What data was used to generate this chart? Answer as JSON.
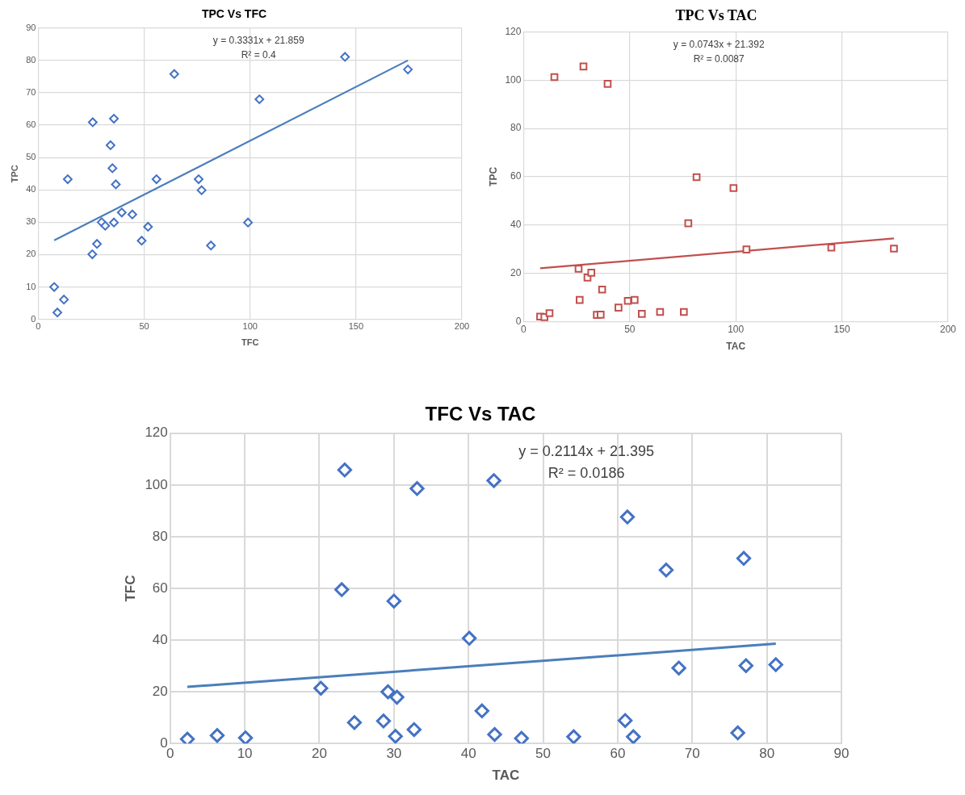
{
  "chart_data": [
    {
      "type": "scatter",
      "title": "TPC Vs TFC",
      "xlabel": "TFC",
      "ylabel": "TPC",
      "xlim": [
        0,
        200
      ],
      "ylim": [
        0,
        90
      ],
      "xticks": [
        0,
        50,
        100,
        150,
        200
      ],
      "yticks": [
        0,
        10,
        20,
        30,
        40,
        50,
        60,
        70,
        80,
        90
      ],
      "grid": true,
      "series": [
        {
          "marker": "diamond",
          "color": "#4472c4",
          "x": [
            7.5,
            12.1,
            9.0,
            13.9,
            25.7,
            25.5,
            27.7,
            29.9,
            31.6,
            34.1,
            35.0,
            35.7,
            35.7,
            36.6,
            39.4,
            44.4,
            48.8,
            51.8,
            55.8,
            64.2,
            75.7,
            77.1,
            81.5,
            99.0,
            104.4,
            144.8,
            174.5
          ],
          "values": [
            10,
            6.1,
            2.1,
            43.3,
            60.9,
            20.1,
            23.3,
            30,
            28.9,
            53.8,
            46.7,
            62.0,
            29.9,
            41.7,
            33.0,
            32.4,
            24.3,
            28.6,
            43.3,
            75.8,
            43.3,
            39.9,
            22.8,
            29.9,
            68.0,
            81.1,
            77.2
          ]
        },
        {
          "type": "line",
          "marker": "none",
          "color": "#4a7ebb",
          "x": [
            7.5,
            174.5
          ],
          "values": [
            24.4,
            80.0
          ]
        }
      ],
      "annotations": [
        "y = 0.3331x + 21.859",
        "R² = 0.4"
      ]
    },
    {
      "type": "scatter",
      "title": "TPC Vs TAC",
      "xlabel": "TAC",
      "ylabel": "TPC",
      "xlim": [
        0,
        200
      ],
      "ylim": [
        0,
        120
      ],
      "xticks": [
        0,
        50,
        100,
        150,
        200
      ],
      "yticks": [
        0,
        20,
        40,
        60,
        80,
        100,
        120
      ],
      "grid": true,
      "series": [
        {
          "marker": "square",
          "color": "#c0504d",
          "x": [
            7.8,
            9.8,
            12.2,
            14.5,
            25.9,
            26.4,
            28.2,
            30.1,
            31.9,
            34.5,
            36.3,
            37.0,
            39.6,
            44.7,
            49.1,
            52.3,
            55.7,
            64.3,
            75.5,
            77.6,
            81.5,
            98.9,
            105.0,
            145.0,
            174.5
          ],
          "values": [
            2.0,
            1.8,
            3.4,
            101.3,
            21.8,
            8.9,
            105.7,
            18.2,
            20.2,
            2.7,
            2.8,
            13.2,
            98.5,
            5.7,
            8.5,
            8.9,
            3.1,
            3.9,
            3.9,
            40.7,
            59.8,
            55.3,
            29.8,
            30.6,
            30.2
          ]
        },
        {
          "type": "line",
          "marker": "none",
          "color": "#c0504d",
          "x": [
            7.8,
            174.5
          ],
          "values": [
            22.0,
            34.4
          ]
        }
      ],
      "annotations": [
        "y = 0.0743x + 21.392",
        "R² = 0.0087"
      ]
    },
    {
      "type": "scatter",
      "title": "TFC Vs TAC",
      "xlabel": "TAC",
      "ylabel": "TFC",
      "xlim": [
        0,
        90
      ],
      "ylim": [
        0,
        120
      ],
      "xticks": [
        0,
        10,
        20,
        30,
        40,
        50,
        60,
        70,
        80,
        90
      ],
      "yticks": [
        0,
        20,
        40,
        60,
        80,
        100,
        120
      ],
      "grid": true,
      "series": [
        {
          "marker": "diamond",
          "color": "#4472c4",
          "x": [
            2.3,
            6.3,
            10.1,
            20.2,
            23.0,
            23.4,
            24.7,
            28.6,
            29.2,
            30.0,
            30.2,
            30.4,
            32.7,
            33.1,
            40.1,
            41.8,
            43.4,
            43.5,
            47.1,
            54.1,
            61.0,
            61.3,
            62.1,
            66.5,
            68.2,
            76.1,
            76.9,
            77.2,
            81.2
          ],
          "values": [
            1.7,
            3.1,
            2.2,
            21.4,
            59.5,
            105.8,
            8.1,
            8.7,
            20.0,
            55.1,
            2.8,
            17.9,
            5.4,
            98.6,
            40.7,
            12.6,
            101.7,
            3.5,
            2.0,
            2.6,
            8.9,
            87.6,
            2.6,
            67.1,
            29.2,
            4.1,
            71.6,
            30.1,
            30.5
          ]
        },
        {
          "type": "line",
          "marker": "none",
          "color": "#4a7ebb",
          "x": [
            2.3,
            81.2
          ],
          "values": [
            21.9,
            38.6
          ]
        }
      ],
      "annotations": [
        "y = 0.2114x + 21.395",
        "R² = 0.0186"
      ]
    }
  ]
}
